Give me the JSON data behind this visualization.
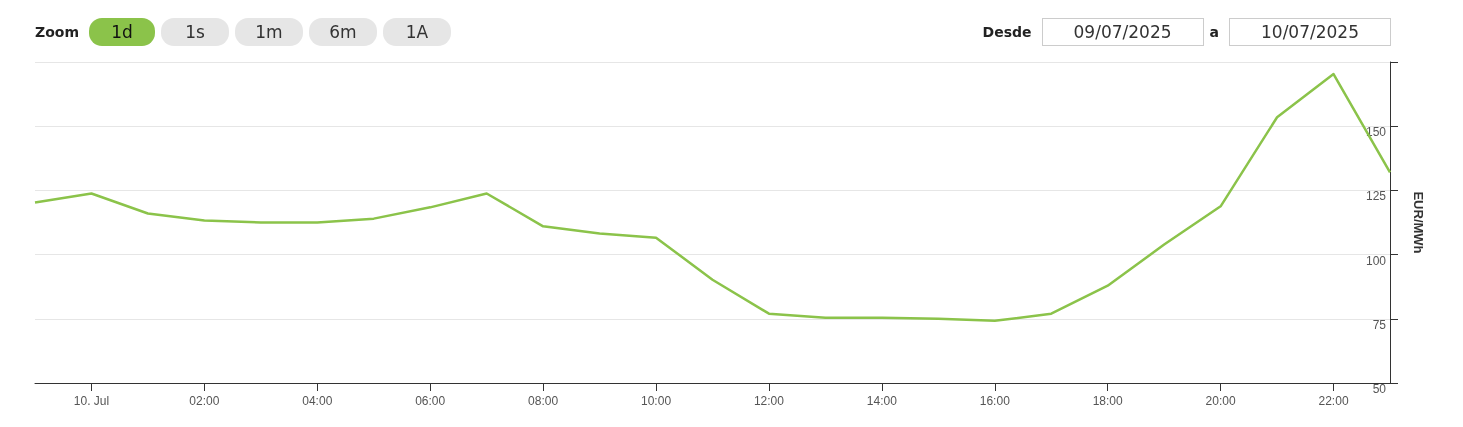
{
  "chart_data": {
    "type": "line",
    "ylabel": "EUR/MWh",
    "x": [
      "2025-07-09T23:00",
      "2025-07-10T00:00",
      "2025-07-10T01:00",
      "2025-07-10T02:00",
      "2025-07-10T03:00",
      "2025-07-10T04:00",
      "2025-07-10T05:00",
      "2025-07-10T06:00",
      "2025-07-10T07:00",
      "2025-07-10T08:00",
      "2025-07-10T09:00",
      "2025-07-10T10:00",
      "2025-07-10T11:00",
      "2025-07-10T12:00",
      "2025-07-10T13:00",
      "2025-07-10T14:00",
      "2025-07-10T15:00",
      "2025-07-10T16:00",
      "2025-07-10T17:00",
      "2025-07-10T18:00",
      "2025-07-10T19:00",
      "2025-07-10T20:00",
      "2025-07-10T21:00",
      "2025-07-10T22:00",
      "2025-07-10T23:00"
    ],
    "values": [
      120.3,
      123.8,
      116,
      113.3,
      112.5,
      112.5,
      114,
      118.4,
      123.8,
      111,
      108.2,
      106.6,
      90.2,
      77,
      75.4,
      75.4,
      75,
      74.2,
      77,
      87.9,
      103.9,
      118.8,
      153.5,
      170.3,
      132
    ],
    "color": "#8bc34a",
    "xlim": [
      "2025-07-09T23:00",
      "2025-07-10T23:00"
    ],
    "xticks": [
      {
        "value": "2025-07-10T00:00",
        "label": "10. Jul"
      },
      {
        "value": "2025-07-10T02:00",
        "label": "02:00"
      },
      {
        "value": "2025-07-10T04:00",
        "label": "04:00"
      },
      {
        "value": "2025-07-10T06:00",
        "label": "06:00"
      },
      {
        "value": "2025-07-10T08:00",
        "label": "08:00"
      },
      {
        "value": "2025-07-10T10:00",
        "label": "10:00"
      },
      {
        "value": "2025-07-10T12:00",
        "label": "12:00"
      },
      {
        "value": "2025-07-10T14:00",
        "label": "14:00"
      },
      {
        "value": "2025-07-10T16:00",
        "label": "16:00"
      },
      {
        "value": "2025-07-10T18:00",
        "label": "18:00"
      },
      {
        "value": "2025-07-10T20:00",
        "label": "20:00"
      },
      {
        "value": "2025-07-10T22:00",
        "label": "22:00"
      }
    ],
    "ylim": [
      50,
      175
    ],
    "yticks": [
      50,
      75,
      100,
      125,
      150,
      {
        "value": 175,
        "label": null
      }
    ],
    "grid": "y",
    "marker": "none",
    "line_style": "solid",
    "annotations": [
      "Zoom",
      "1d",
      "1s",
      "1m",
      "6m",
      "1A",
      "Desde",
      "09/07/2025",
      "a",
      "10/07/2025"
    ]
  }
}
